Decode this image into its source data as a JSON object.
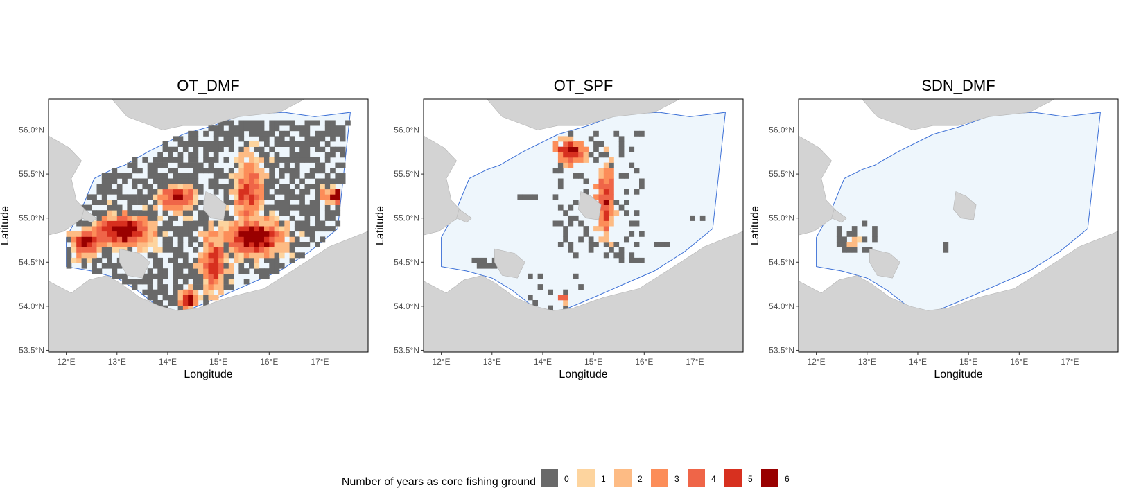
{
  "chart_data": {
    "type": "heatmap",
    "panels": [
      {
        "title": "OT_DMF",
        "xlabel": "Longitude",
        "ylabel": "Latitude"
      },
      {
        "title": "OT_SPF",
        "xlabel": "Longitude",
        "ylabel": "Latitude"
      },
      {
        "title": "SDN_DMF",
        "xlabel": "Longitude",
        "ylabel": "Latitude"
      }
    ],
    "xlim": [
      11.65,
      17.95
    ],
    "ylim": [
      53.48,
      56.35
    ],
    "x_ticks": [
      {
        "value": 12,
        "label": "12°E"
      },
      {
        "value": 13,
        "label": "13°E"
      },
      {
        "value": 14,
        "label": "14°E"
      },
      {
        "value": 15,
        "label": "15°E"
      },
      {
        "value": 16,
        "label": "16°E"
      },
      {
        "value": 17,
        "label": "17°E"
      }
    ],
    "y_ticks": [
      {
        "value": 53.5,
        "label": "53.5°N"
      },
      {
        "value": 54.0,
        "label": "54.0°N"
      },
      {
        "value": 54.5,
        "label": "54.5°N"
      },
      {
        "value": 55.0,
        "label": "55.0°N"
      },
      {
        "value": 55.5,
        "label": "55.5°N"
      },
      {
        "value": 56.0,
        "label": "56.0°N"
      }
    ],
    "legend": {
      "title": "Number of years as core fishing ground",
      "position": "bottom",
      "items": [
        {
          "label": "0",
          "color": "#696969"
        },
        {
          "label": "1",
          "color": "#fdd49e"
        },
        {
          "label": "2",
          "color": "#fdbb84"
        },
        {
          "label": "3",
          "color": "#fc8d59"
        },
        {
          "label": "4",
          "color": "#ef6548"
        },
        {
          "label": "5",
          "color": "#d7301f"
        },
        {
          "label": "6",
          "color": "#990000"
        }
      ]
    },
    "colors": {
      "land": "#d3d3d3",
      "sea_area": "#eef6fc",
      "area_outline": "#3b6fd6",
      "panel_border": "#000000"
    }
  }
}
